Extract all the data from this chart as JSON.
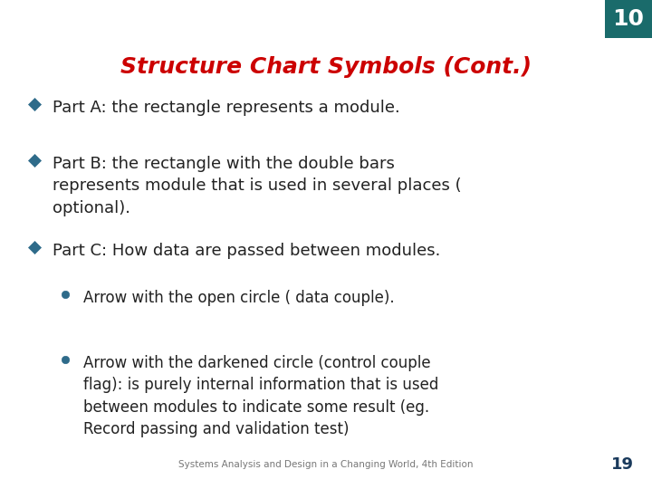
{
  "title": "Structure Chart Symbols (Cont.)",
  "title_color": "#CC0000",
  "title_fontsize": 18,
  "background_color": "#FFFFFF",
  "slide_number": "10",
  "slide_number_bg": "#1A6B6B",
  "slide_number_color": "#FFFFFF",
  "page_number": "19",
  "page_number_color": "#1A3A5C",
  "footer": "Systems Analysis and Design in a Changing World, 4th Edition",
  "footer_color": "#777777",
  "bullet_color": "#2E6B8A",
  "sub_bullet_color": "#2E6B8A",
  "text_color": "#222222",
  "bullet_items": [
    {
      "level": 0,
      "text": "Part A: the rectangle represents a module."
    },
    {
      "level": 0,
      "text": "Part B: the rectangle with the double bars\nrepresents module that is used in several places (\noptional)."
    },
    {
      "level": 0,
      "text": "Part C: How data are passed between modules."
    },
    {
      "level": 1,
      "text": "Arrow with the open circle ( data couple)."
    },
    {
      "level": 1,
      "text": "Arrow with the darkened circle (control couple\nflag): is purely internal information that is used\nbetween modules to indicate some result (eg.\nRecord passing and validation test)"
    }
  ],
  "fontsize_main": 13,
  "fontsize_sub": 12,
  "linespacing": 1.45
}
